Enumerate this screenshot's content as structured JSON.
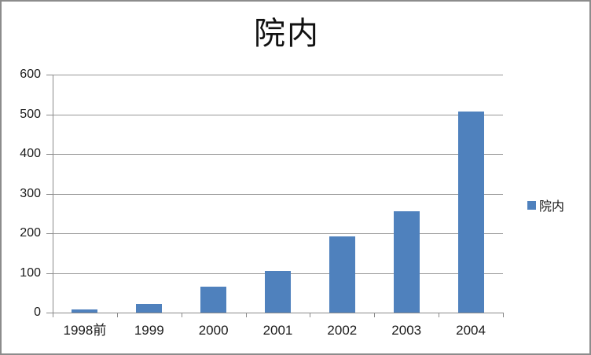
{
  "chart_data": {
    "type": "bar",
    "title": "院内",
    "categories": [
      "1998前",
      "1999",
      "2000",
      "2001",
      "2002",
      "2003",
      "2004"
    ],
    "series": [
      {
        "name": "院内",
        "values": [
          8,
          22,
          66,
          104,
          192,
          256,
          507
        ]
      }
    ],
    "xlabel": "",
    "ylabel": "",
    "ylim": [
      0,
      600
    ],
    "ytick_step": 100,
    "yticks": [
      0,
      100,
      200,
      300,
      400,
      500,
      600
    ],
    "grid": true,
    "legend_position": "right",
    "legend_entries": [
      "院内"
    ]
  },
  "colors": {
    "bar_fill": "#4F81BD",
    "gridline": "#979797",
    "axis": "#8a8a8a",
    "text": "#1a1a1a",
    "chart_border": "#8c8c8c",
    "background": "#ffffff"
  }
}
